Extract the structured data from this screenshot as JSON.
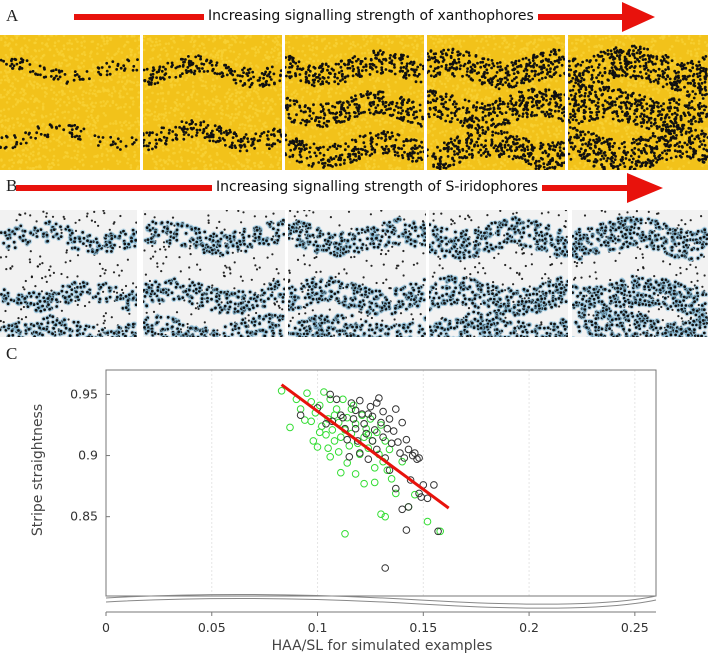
{
  "panel_a": {
    "letter": "A",
    "title": "Increasing signalling strength of xanthophores",
    "tile_count": 5,
    "background_color": "#f2c21a",
    "cell_color": "#f7d135",
    "melanophore_color": "#111111"
  },
  "panel_b": {
    "letter": "B",
    "title": "Increasing signalling strength of S-iridophores",
    "tile_count": 5,
    "background_color": "#f2f2f2",
    "cell_color": "#8ec3e0",
    "melanophore_color": "#111111"
  },
  "panel_c": {
    "letter": "C"
  },
  "arrow_color": "#e8120c",
  "chart_data": {
    "type": "scatter",
    "title": "",
    "xlabel": "HAA/SL for simulated examples",
    "ylabel": "Stripe straightness",
    "xlim": [
      0,
      0.26
    ],
    "ylim": [
      0.79,
      0.97
    ],
    "xticks": [
      0,
      0.05,
      0.1,
      0.15,
      0.2,
      0.25
    ],
    "xtick_labels": [
      "0",
      "0.05",
      "0.1",
      "0.15",
      "0.2",
      "0.25"
    ],
    "yticks": [
      0.85,
      0.9,
      0.95
    ],
    "ytick_labels": [
      "0.85",
      "0.9",
      "0.95"
    ],
    "grid": "vertical",
    "legend": "none",
    "series": [
      {
        "color": "#33dd33",
        "points": [
          [
            0.083,
            0.953
          ],
          [
            0.087,
            0.923
          ],
          [
            0.09,
            0.946
          ],
          [
            0.092,
            0.938
          ],
          [
            0.094,
            0.929
          ],
          [
            0.095,
            0.951
          ],
          [
            0.097,
            0.944
          ],
          [
            0.098,
            0.912
          ],
          [
            0.099,
            0.935
          ],
          [
            0.1,
            0.907
          ],
          [
            0.101,
            0.941
          ],
          [
            0.102,
            0.924
          ],
          [
            0.103,
            0.952
          ],
          [
            0.104,
            0.917
          ],
          [
            0.105,
            0.93
          ],
          [
            0.106,
            0.946
          ],
          [
            0.106,
            0.899
          ],
          [
            0.107,
            0.921
          ],
          [
            0.108,
            0.912
          ],
          [
            0.109,
            0.938
          ],
          [
            0.11,
            0.927
          ],
          [
            0.11,
            0.903
          ],
          [
            0.111,
            0.915
          ],
          [
            0.112,
            0.946
          ],
          [
            0.113,
            0.921
          ],
          [
            0.114,
            0.931
          ],
          [
            0.114,
            0.894
          ],
          [
            0.115,
            0.908
          ],
          [
            0.116,
            0.918
          ],
          [
            0.117,
            0.941
          ],
          [
            0.118,
            0.885
          ],
          [
            0.118,
            0.926
          ],
          [
            0.119,
            0.91
          ],
          [
            0.12,
            0.901
          ],
          [
            0.121,
            0.933
          ],
          [
            0.122,
            0.915
          ],
          [
            0.122,
            0.877
          ],
          [
            0.123,
            0.922
          ],
          [
            0.124,
            0.906
          ],
          [
            0.125,
            0.93
          ],
          [
            0.126,
            0.912
          ],
          [
            0.127,
            0.89
          ],
          [
            0.128,
            0.919
          ],
          [
            0.129,
            0.901
          ],
          [
            0.13,
            0.925
          ],
          [
            0.131,
            0.895
          ],
          [
            0.132,
            0.912
          ],
          [
            0.133,
            0.888
          ],
          [
            0.134,
            0.905
          ],
          [
            0.135,
            0.881
          ],
          [
            0.137,
            0.869
          ],
          [
            0.14,
            0.895
          ],
          [
            0.143,
            0.858
          ],
          [
            0.146,
            0.868
          ],
          [
            0.113,
            0.836
          ],
          [
            0.13,
            0.852
          ],
          [
            0.132,
            0.85
          ],
          [
            0.097,
            0.928
          ],
          [
            0.108,
            0.933
          ],
          [
            0.116,
            0.938
          ],
          [
            0.101,
            0.919
          ],
          [
            0.105,
            0.906
          ],
          [
            0.124,
            0.917
          ],
          [
            0.111,
            0.886
          ],
          [
            0.127,
            0.878
          ],
          [
            0.152,
            0.846
          ],
          [
            0.158,
            0.838
          ]
        ]
      },
      {
        "color": "#333333",
        "points": [
          [
            0.092,
            0.933
          ],
          [
            0.1,
            0.939
          ],
          [
            0.104,
            0.926
          ],
          [
            0.106,
            0.95
          ],
          [
            0.109,
            0.946
          ],
          [
            0.111,
            0.933
          ],
          [
            0.113,
            0.922
          ],
          [
            0.114,
            0.913
          ],
          [
            0.116,
            0.943
          ],
          [
            0.117,
            0.93
          ],
          [
            0.118,
            0.922
          ],
          [
            0.119,
            0.912
          ],
          [
            0.12,
            0.902
          ],
          [
            0.121,
            0.934
          ],
          [
            0.122,
            0.926
          ],
          [
            0.123,
            0.918
          ],
          [
            0.124,
            0.897
          ],
          [
            0.125,
            0.94
          ],
          [
            0.126,
            0.932
          ],
          [
            0.126,
            0.912
          ],
          [
            0.127,
            0.921
          ],
          [
            0.128,
            0.905
          ],
          [
            0.129,
            0.947
          ],
          [
            0.13,
            0.927
          ],
          [
            0.131,
            0.915
          ],
          [
            0.131,
            0.936
          ],
          [
            0.132,
            0.898
          ],
          [
            0.133,
            0.922
          ],
          [
            0.134,
            0.93
          ],
          [
            0.134,
            0.888
          ],
          [
            0.135,
            0.91
          ],
          [
            0.136,
            0.92
          ],
          [
            0.137,
            0.938
          ],
          [
            0.138,
            0.911
          ],
          [
            0.139,
            0.902
          ],
          [
            0.14,
            0.927
          ],
          [
            0.141,
            0.898
          ],
          [
            0.142,
            0.913
          ],
          [
            0.143,
            0.905
          ],
          [
            0.144,
            0.88
          ],
          [
            0.145,
            0.9
          ],
          [
            0.146,
            0.902
          ],
          [
            0.147,
            0.897
          ],
          [
            0.148,
            0.898
          ],
          [
            0.15,
            0.876
          ],
          [
            0.152,
            0.865
          ],
          [
            0.155,
            0.876
          ],
          [
            0.157,
            0.838
          ],
          [
            0.14,
            0.856
          ],
          [
            0.143,
            0.858
          ],
          [
            0.148,
            0.869
          ],
          [
            0.128,
            0.943
          ],
          [
            0.115,
            0.899
          ],
          [
            0.107,
            0.928
          ],
          [
            0.124,
            0.934
          ],
          [
            0.137,
            0.873
          ],
          [
            0.142,
            0.839
          ],
          [
            0.132,
            0.808
          ],
          [
            0.149,
            0.866
          ],
          [
            0.112,
            0.931
          ],
          [
            0.118,
            0.937
          ],
          [
            0.12,
            0.945
          ]
        ]
      }
    ],
    "trend_line": {
      "color": "#e8120c",
      "from": [
        0.083,
        0.958
      ],
      "to": [
        0.162,
        0.857
      ]
    }
  }
}
